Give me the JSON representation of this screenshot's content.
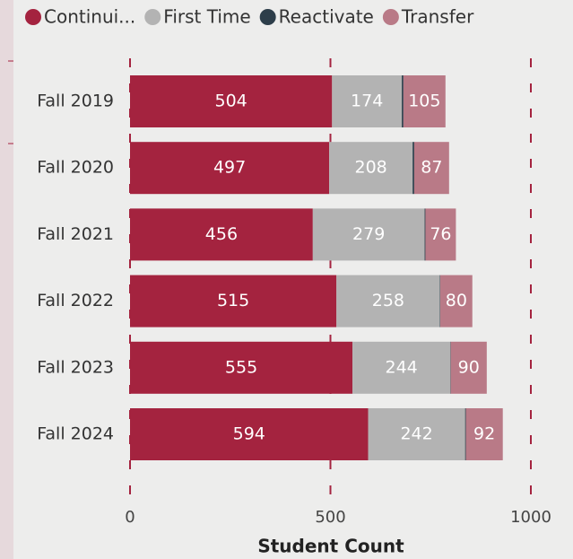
{
  "chart_data": {
    "type": "stacked_bar_horizontal",
    "categories": [
      "Fall 2019",
      "Fall 2020",
      "Fall 2021",
      "Fall 2022",
      "Fall 2023",
      "Fall 2024"
    ],
    "series": [
      {
        "name": "Continui...",
        "color": "#a4233f",
        "values": [
          504,
          497,
          456,
          515,
          555,
          594
        ]
      },
      {
        "name": "First Time",
        "color": "#b3b3b3",
        "values": [
          174,
          208,
          279,
          258,
          244,
          242
        ]
      },
      {
        "name": "Reactivate",
        "color": "#2d3e4a",
        "values": [
          4,
          4,
          2,
          1,
          1,
          2
        ]
      },
      {
        "name": "Transfer",
        "color": "#b97a87",
        "values": [
          105,
          87,
          76,
          80,
          90,
          92
        ]
      }
    ],
    "xlim": [
      0,
      1000
    ],
    "xticks": [
      0,
      500,
      1000
    ],
    "x_label": "Student Count",
    "grid": true,
    "legend": "top"
  }
}
